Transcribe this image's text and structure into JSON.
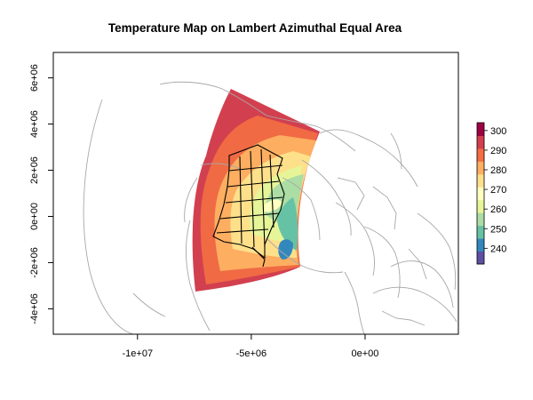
{
  "title": "Temperature Map on Lambert Azimuthal Equal Area",
  "map": {
    "projection": "Lambert Azimuthal Equal Area",
    "xlim": [
      -13700000,
      4100000
    ],
    "ylim": [
      -5100000,
      7100000
    ],
    "x_ticks": [
      {
        "value": -10000000,
        "label": "-1e+07"
      },
      {
        "value": -5000000,
        "label": "-5e+06"
      },
      {
        "value": 0,
        "label": "0e+00"
      }
    ],
    "y_ticks": [
      {
        "value": -4000000,
        "label": "-4e+06"
      },
      {
        "value": -2000000,
        "label": "-2e+06"
      },
      {
        "value": 0,
        "label": "0e+00"
      },
      {
        "value": 2000000,
        "label": "2e+06"
      },
      {
        "value": 4000000,
        "label": "4e+06"
      },
      {
        "value": 6000000,
        "label": "6e+06"
      }
    ],
    "colors": {
      "coastline": "#a8a8a8",
      "borders": "#000000"
    }
  },
  "colorbar": {
    "range": [
      232,
      304
    ],
    "ticks": [
      {
        "value": 240,
        "label": "240"
      },
      {
        "value": 250,
        "label": "250"
      },
      {
        "value": 260,
        "label": "260"
      },
      {
        "value": 270,
        "label": "270"
      },
      {
        "value": 280,
        "label": "280"
      },
      {
        "value": 290,
        "label": "290"
      },
      {
        "value": 300,
        "label": "300"
      }
    ],
    "palette": [
      "#5e4fa2",
      "#3288bd",
      "#66c2a5",
      "#abdda4",
      "#e6f598",
      "#ffffbf",
      "#fee08b",
      "#fdae61",
      "#f46d43",
      "#d53e4f",
      "#9e0142"
    ]
  }
}
